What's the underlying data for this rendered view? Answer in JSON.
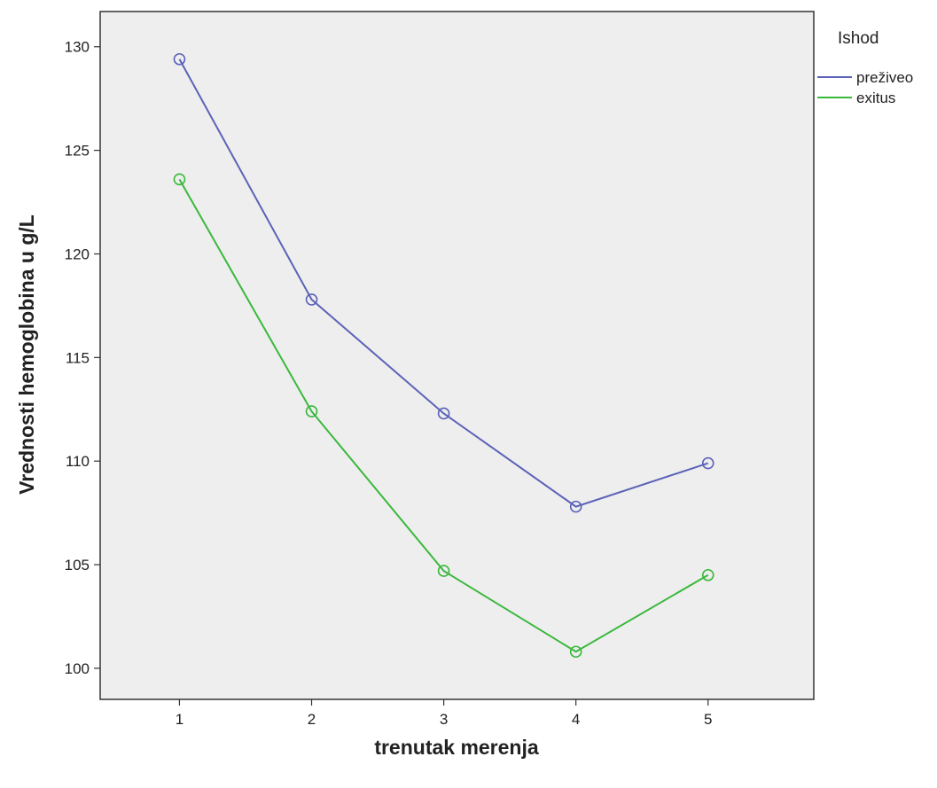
{
  "chart_data": {
    "type": "line",
    "title": "",
    "xlabel": "trenutak merenja",
    "ylabel": "Vrednosti hemoglobina u g/L",
    "x": [
      1,
      2,
      3,
      4,
      5
    ],
    "xlim": [
      0.4,
      5.8
    ],
    "ylim": [
      98.5,
      131.7
    ],
    "yticks": [
      100,
      105,
      110,
      115,
      120,
      125,
      130
    ],
    "grid": false,
    "legend": {
      "title": "Ishod",
      "position": "right"
    },
    "series": [
      {
        "name": "preživeo",
        "color": "#5b62b8",
        "marker": "open-circle",
        "values": [
          129.4,
          117.8,
          112.3,
          107.8,
          109.9
        ]
      },
      {
        "name": "exitus",
        "color": "#3ab83c",
        "marker": "open-circle",
        "values": [
          123.6,
          112.4,
          104.7,
          100.8,
          104.5
        ]
      }
    ],
    "plot_background": "#eeeeee",
    "axis_color": "#333333"
  }
}
